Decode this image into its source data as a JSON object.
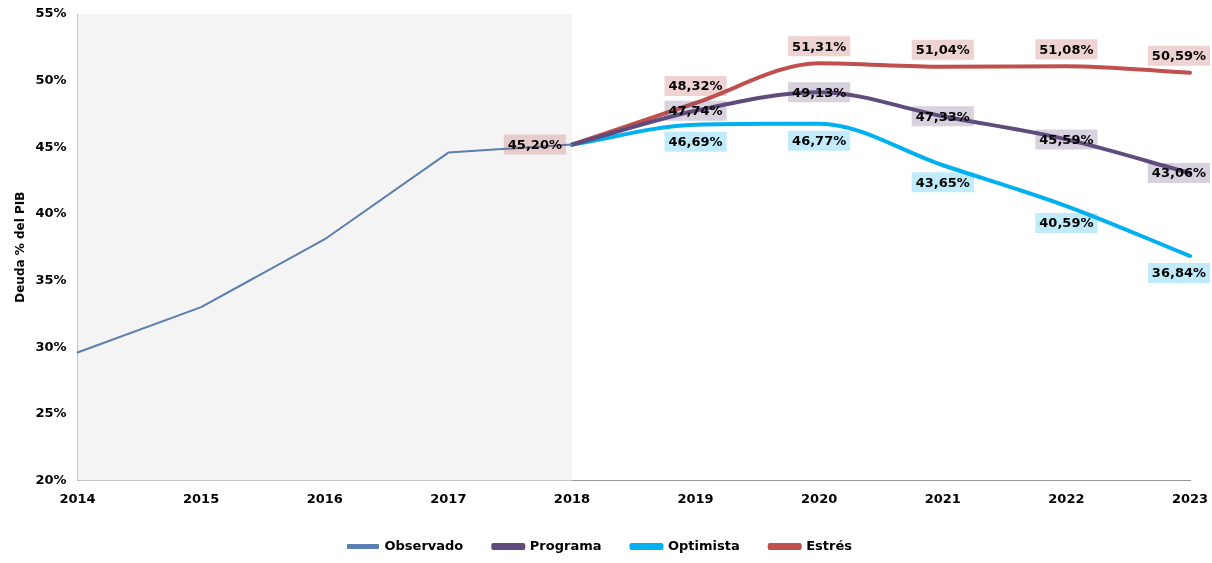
{
  "chart_data": {
    "type": "line",
    "ylabel": "Deuda % del PIB",
    "categories": [
      "2014",
      "2015",
      "2016",
      "2017",
      "2018",
      "2019",
      "2020",
      "2021",
      "2022",
      "2023"
    ],
    "ylim": [
      20,
      55
    ],
    "yticks": [
      {
        "value": 20,
        "label": "20%"
      },
      {
        "value": 25,
        "label": "25%"
      },
      {
        "value": 30,
        "label": "30%"
      },
      {
        "value": 35,
        "label": "35%"
      },
      {
        "value": 40,
        "label": "40%"
      },
      {
        "value": 45,
        "label": "45%"
      },
      {
        "value": 50,
        "label": "50%"
      },
      {
        "value": 55,
        "label": "55%"
      }
    ],
    "grid": false,
    "legend": "bottom",
    "marker": "none",
    "line_style": "solid",
    "bands": [
      {
        "axis": "x",
        "from": "2014",
        "to": "2018",
        "color": "#f4f4f4"
      }
    ],
    "series": [
      {
        "name": "Observado",
        "color": "#5b7fb0",
        "values": [
          29.6,
          33.0,
          38.1,
          44.6,
          45.2,
          null,
          null,
          null,
          null,
          null
        ]
      },
      {
        "name": "Programa",
        "color": "#5f4b7c",
        "values": [
          null,
          null,
          null,
          null,
          45.2,
          47.74,
          49.13,
          47.33,
          45.59,
          43.06
        ],
        "value_labels": [
          null,
          null,
          null,
          null,
          null,
          "47,74%",
          "49,13%",
          "47,33%",
          "45,59%",
          "43,06%"
        ]
      },
      {
        "name": "Optimista",
        "color": "#00b0f0",
        "values": [
          null,
          null,
          null,
          null,
          45.2,
          46.69,
          46.77,
          43.65,
          40.59,
          36.84
        ],
        "value_labels": [
          null,
          null,
          null,
          null,
          null,
          "46,69%",
          "46,77%",
          "43,65%",
          "40,59%",
          "36,84%"
        ]
      },
      {
        "name": "Estrés",
        "color": "#c0504d",
        "values": [
          null,
          null,
          null,
          null,
          45.2,
          48.32,
          51.31,
          51.04,
          51.08,
          50.59
        ],
        "value_labels": [
          null,
          null,
          null,
          null,
          "45,20%",
          "48,32%",
          "51,31%",
          "51,04%",
          "51,08%",
          "50,59%"
        ]
      }
    ]
  }
}
